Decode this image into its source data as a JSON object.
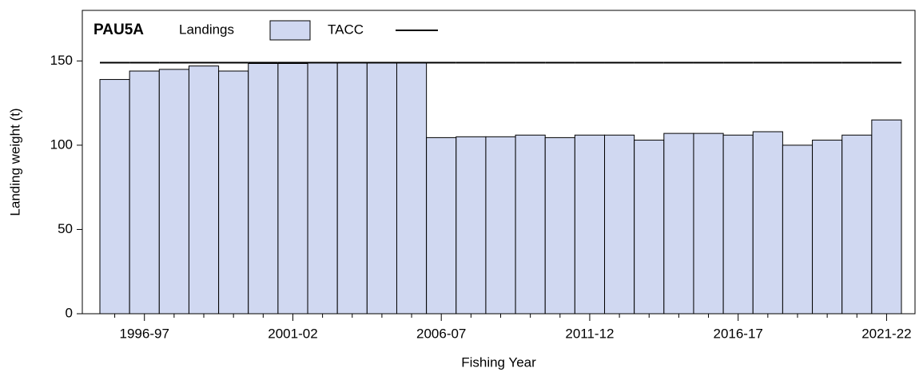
{
  "chart_data": {
    "type": "bar",
    "title": "PAU5A",
    "x_label": "Fishing Year",
    "y_label": "Landing weight (t)",
    "categories": [
      null,
      "1996-97",
      null,
      null,
      null,
      null,
      "2001-02",
      null,
      null,
      null,
      null,
      "2006-07",
      null,
      null,
      null,
      null,
      "2011-12",
      null,
      null,
      null,
      null,
      "2016-17",
      null,
      null,
      null,
      null,
      "2021-22"
    ],
    "series": [
      {
        "name": "Landings",
        "color": "#d0d8f1",
        "values": [
          139,
          144,
          145,
          147,
          144,
          148.5,
          148.5,
          149,
          149,
          149,
          149,
          104.5,
          105,
          105,
          106,
          104.5,
          106,
          106,
          103,
          107,
          107,
          106,
          108,
          100,
          103,
          106,
          115
        ]
      },
      {
        "name": "TACC",
        "color": "#000000",
        "type": "line",
        "values": [
          149,
          149,
          149,
          149,
          149,
          149,
          149,
          149,
          149,
          149,
          149,
          149,
          149,
          149,
          149,
          149,
          149,
          149,
          149,
          149,
          149,
          149,
          149,
          149,
          149,
          149,
          149
        ]
      }
    ],
    "ylim": [
      0,
      180
    ],
    "yticks": [
      0,
      50,
      100,
      150
    ]
  }
}
